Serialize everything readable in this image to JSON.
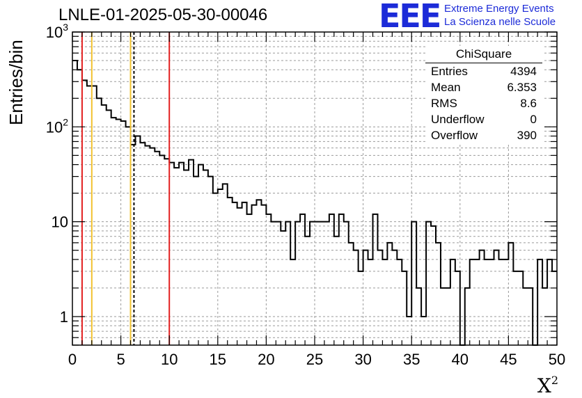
{
  "header": {
    "run_title": "LNLE-01-2025-05-30-00046",
    "y_axis_label": "Entries/bin",
    "x_axis_label": "X²"
  },
  "logo": {
    "mark": "EEE",
    "line1": "Extreme Energy Events",
    "line2": "La Scienza nelle Scuole",
    "color": "#1c2bd8"
  },
  "stats_box": {
    "title": "ChiSquare",
    "rows": [
      {
        "label": "Entries",
        "value": "4394"
      },
      {
        "label": "Mean",
        "value": "6.353"
      },
      {
        "label": "RMS",
        "value": "8.6"
      },
      {
        "label": "Underflow",
        "value": "0"
      },
      {
        "label": "Overflow",
        "value": "390"
      }
    ]
  },
  "chart_data": {
    "type": "histogram",
    "title": "LNLE-01-2025-05-30-00046",
    "xlabel": "X²",
    "ylabel": "Entries/bin",
    "xlim": [
      0,
      50
    ],
    "ylim": [
      0.5,
      1000
    ],
    "y_scale": "log",
    "grid": true,
    "bin_width": 0.5,
    "x_ticks": [
      0,
      5,
      10,
      15,
      20,
      25,
      30,
      35,
      40,
      45,
      50
    ],
    "y_tick_labels": [
      "1",
      "10",
      "10²",
      "10³"
    ],
    "bin_values": [
      500,
      400,
      310,
      270,
      270,
      200,
      170,
      150,
      125,
      120,
      115,
      100,
      65,
      80,
      68,
      63,
      60,
      55,
      50,
      46,
      42,
      37,
      42,
      35,
      45,
      30,
      40,
      35,
      30,
      20,
      22,
      25,
      18,
      16,
      14,
      16,
      12,
      15,
      17,
      15,
      12,
      10,
      10,
      8,
      10,
      4,
      10,
      12,
      7,
      10,
      10,
      10,
      10,
      12,
      7,
      12,
      10,
      6,
      5,
      3,
      5,
      4,
      12,
      5,
      4,
      6,
      5,
      4,
      3,
      1,
      10,
      2,
      1,
      10,
      9,
      6,
      2,
      2,
      4,
      3,
      0.3,
      2,
      4,
      4,
      5,
      4,
      4,
      5,
      4,
      4,
      6,
      3,
      3,
      2,
      2,
      0.3,
      4,
      2,
      4,
      3
    ],
    "vertical_lines": [
      {
        "x": 1,
        "color": "#e32020",
        "style": "solid"
      },
      {
        "x": 2,
        "color": "#f2c230",
        "style": "solid"
      },
      {
        "x": 6,
        "color": "#f2c230",
        "style": "solid"
      },
      {
        "x": 6.353,
        "color": "#000000",
        "style": "dashed"
      },
      {
        "x": 10,
        "color": "#e32020",
        "style": "solid"
      }
    ]
  }
}
